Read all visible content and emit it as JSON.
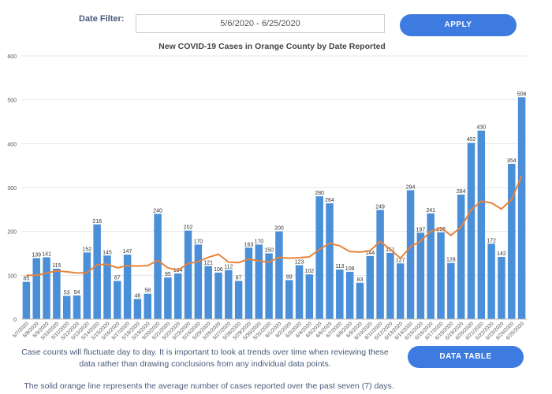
{
  "header": {
    "date_filter_label": "Date Filter:",
    "date_range": "5/6/2020 - 6/25/2020",
    "apply_button": "APPLY"
  },
  "chart_data": {
    "type": "bar",
    "title": "New COVID-19 Cases in Orange County by Date Reported",
    "categories": [
      "5/7/2020",
      "5/8/2020",
      "5/9/2020",
      "5/10/2020",
      "5/11/2020",
      "5/12/2020",
      "5/13/2020",
      "5/14/2020",
      "5/15/2020",
      "5/16/2020",
      "5/17/2020",
      "5/18/2020",
      "5/19/2020",
      "5/20/2020",
      "5/21/2020",
      "5/22/2020",
      "5/23/2020",
      "5/24/2020",
      "5/25/2020",
      "5/26/2020",
      "5/27/2020",
      "5/28/2020",
      "5/29/2020",
      "5/30/2020",
      "5/31/2020",
      "6/1/2020",
      "6/2/2020",
      "6/3/2020",
      "6/4/2020",
      "6/5/2020",
      "6/6/2020",
      "6/7/2020",
      "6/8/2020",
      "6/9/2020",
      "6/10/2020",
      "6/11/2020",
      "6/12/2020",
      "6/13/2020",
      "6/14/2020",
      "6/15/2020",
      "6/16/2020",
      "6/17/2020",
      "6/18/2020",
      "6/19/2020",
      "6/20/2020",
      "6/21/2020",
      "6/22/2020",
      "6/23/2020",
      "6/24/2020",
      "6/25/2020"
    ],
    "series": [
      {
        "type": "bar",
        "color": "#4a8fd8",
        "values": [
          85,
          139,
          141,
          115,
          53,
          54,
          152,
          216,
          145,
          87,
          147,
          46,
          58,
          240,
          95,
          104,
          202,
          170,
          121,
          106,
          112,
          87,
          163,
          170,
          150,
          200,
          89,
          123,
          102,
          280,
          264,
          113,
          108,
          83,
          144,
          249,
          151,
          127,
          294,
          197,
          241,
          198,
          128,
          284,
          402,
          430,
          172,
          142,
          354,
          506
        ]
      },
      {
        "type": "line",
        "color": "#e8833a",
        "values": [
          100,
          100,
          105,
          110,
          108,
          105,
          106,
          124,
          125,
          117,
          122,
          121,
          122,
          134,
          117,
          111,
          127,
          131,
          141,
          148,
          130,
          129,
          137,
          133,
          130,
          141,
          139,
          140,
          142,
          159,
          173,
          167,
          154,
          153,
          156,
          177,
          159,
          139,
          165,
          178,
          200,
          208,
          191,
          210,
          249,
          269,
          265,
          251,
          273,
          327
        ]
      }
    ],
    "ylim": [
      0,
      600
    ],
    "yticks": [
      0,
      100,
      200,
      300,
      400,
      500,
      600
    ],
    "grid": true
  },
  "notes": [
    "Case counts will fluctuate day to day. It is important to look at trends over time when reviewing these",
    "data rather than drawing conclusions from any individual data points.",
    "The solid orange line represents the average number of cases reported over the past seven (7) days."
  ],
  "data_table_button": "DATA TABLE"
}
